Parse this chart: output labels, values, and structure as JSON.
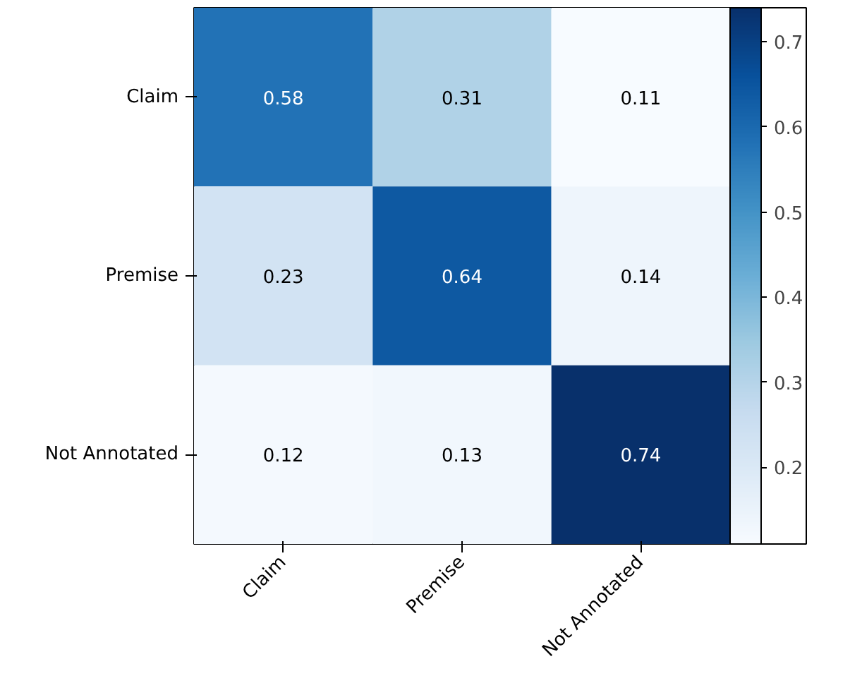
{
  "chart_data": {
    "type": "heatmap",
    "categories": [
      "Claim",
      "Premise",
      "Not Annotated"
    ],
    "y_categories": [
      "Claim",
      "Premise",
      "Not Annotated"
    ],
    "cells": [
      [
        0.58,
        0.31,
        0.11
      ],
      [
        0.23,
        0.64,
        0.14
      ],
      [
        0.12,
        0.13,
        0.74
      ]
    ],
    "clim": [
      0.11,
      0.74
    ],
    "cticks": [
      0.2,
      0.3,
      0.4,
      0.5,
      0.6,
      0.7
    ],
    "data_labels": true,
    "grid": false
  }
}
